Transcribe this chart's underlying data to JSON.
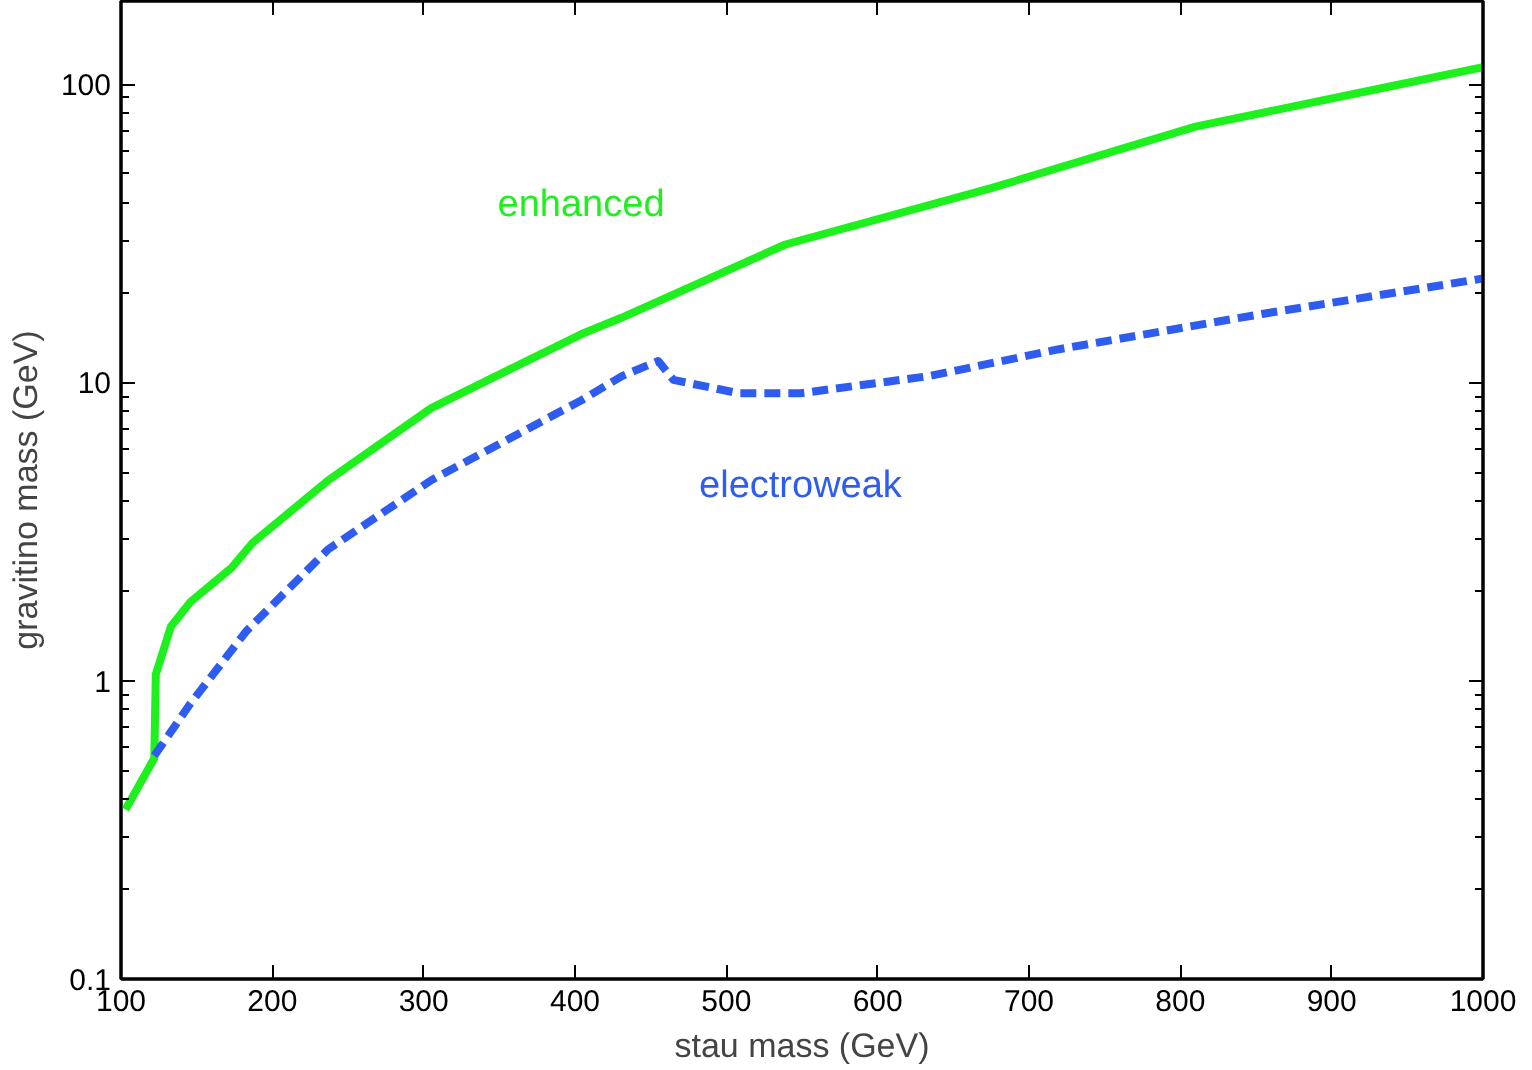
{
  "chart_data": {
    "type": "line",
    "xlabel": "stau mass (GeV)",
    "ylabel": "gravitino mass (GeV)",
    "log": "y",
    "grid": false,
    "xlim": [
      100,
      1000
    ],
    "xticks": [
      100,
      200,
      300,
      400,
      500,
      600,
      700,
      800,
      900,
      1000
    ],
    "ylim": [
      0.1,
      190
    ],
    "yticks": [
      0.1,
      1,
      10,
      100
    ],
    "series": [
      {
        "name": "enhanced",
        "color": "#1ef01e",
        "line_style": "solid",
        "x": [
          103,
          122,
          123,
          133,
          146,
          173,
          187,
          237,
          305,
          404,
          431,
          539,
          675,
          810,
          932,
          1000
        ],
        "values": [
          0.37,
          0.55,
          1.05,
          1.52,
          1.84,
          2.39,
          2.9,
          4.7,
          8.2,
          14.5,
          16.5,
          29,
          44.8,
          72,
          96.7,
          114
        ]
      },
      {
        "name": "electroweak",
        "color": "#2e5cf0",
        "line_style": "dashed",
        "x": [
          122,
          146,
          183,
          237,
          305,
          404,
          431,
          455,
          465,
          508,
          549,
          634,
          719,
          855,
          1000
        ],
        "values": [
          0.56,
          0.84,
          1.47,
          2.76,
          4.7,
          8.7,
          10.5,
          11.8,
          10.2,
          9.2,
          9.2,
          10.5,
          12.9,
          17,
          22.3
        ]
      }
    ]
  }
}
